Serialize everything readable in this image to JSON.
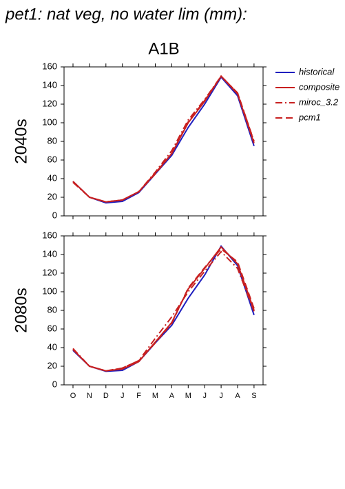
{
  "title": "pet1: nat veg, no water lim (mm):",
  "subtitle": "A1B",
  "chart_data": [
    {
      "type": "line",
      "ylabel": "2040s",
      "categories": [
        "O",
        "N",
        "D",
        "J",
        "F",
        "M",
        "A",
        "M",
        "J",
        "J",
        "A",
        "S"
      ],
      "ylim": [
        0,
        160
      ],
      "yticks": [
        0,
        20,
        40,
        60,
        80,
        100,
        120,
        140,
        160
      ],
      "series": [
        {
          "name": "historical",
          "color": "#1f1fbf",
          "linestyle": "solid",
          "values": [
            37,
            20,
            14,
            15.5,
            25,
            45,
            65,
            95,
            120,
            149,
            129,
            75
          ]
        },
        {
          "name": "composite",
          "color": "#c82020",
          "linestyle": "solid",
          "values": [
            37,
            20,
            15,
            17,
            26,
            46,
            67,
            100,
            123,
            150,
            131,
            78
          ]
        },
        {
          "name": "miroc_3.2",
          "color": "#c82020",
          "linestyle": "dashdot",
          "values": [
            36,
            20,
            15,
            17,
            26,
            47,
            70,
            103,
            125,
            150,
            132,
            80
          ]
        },
        {
          "name": "pcm1",
          "color": "#c82020",
          "linestyle": "dashed",
          "values": [
            37,
            20,
            15,
            17,
            26,
            45,
            67,
            101,
            124,
            150,
            132,
            80
          ]
        }
      ]
    },
    {
      "type": "line",
      "ylabel": "2080s",
      "categories": [
        "O",
        "N",
        "D",
        "J",
        "F",
        "M",
        "A",
        "M",
        "J",
        "J",
        "A",
        "S"
      ],
      "ylim": [
        0,
        160
      ],
      "yticks": [
        0,
        20,
        40,
        60,
        80,
        100,
        120,
        140,
        160
      ],
      "series": [
        {
          "name": "historical",
          "color": "#1f1fbf",
          "linestyle": "solid",
          "values": [
            37,
            20,
            14.5,
            15.5,
            25,
            45,
            64,
            93,
            118,
            149,
            128,
            75
          ]
        },
        {
          "name": "composite",
          "color": "#c82020",
          "linestyle": "solid",
          "values": [
            38,
            20,
            15,
            17,
            25,
            46,
            67,
            103,
            125,
            148,
            130,
            80
          ]
        },
        {
          "name": "miroc_3.2",
          "color": "#c82020",
          "linestyle": "dashdot",
          "values": [
            39,
            20,
            15,
            18,
            26,
            50,
            73,
            100,
            122,
            143,
            125,
            79
          ]
        },
        {
          "name": "pcm1",
          "color": "#c82020",
          "linestyle": "dashed",
          "values": [
            38,
            20,
            15,
            18,
            26,
            45,
            66,
            104,
            126,
            146,
            132,
            82
          ]
        }
      ]
    }
  ]
}
